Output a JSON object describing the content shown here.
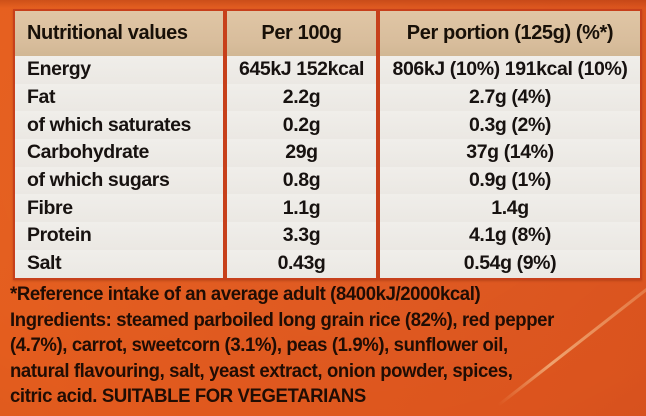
{
  "label": {
    "table": {
      "header": {
        "col1": "Nutritional values",
        "col2": "Per 100g",
        "col3": "Per portion (125g) (%*)"
      },
      "rows": [
        {
          "name": "Energy",
          "per100": "645kJ 152kcal",
          "portion": "806kJ (10%) 191kcal (10%)"
        },
        {
          "name": "Fat",
          "per100": "2.2g",
          "portion": "2.7g (4%)"
        },
        {
          "name": "of which saturates",
          "per100": "0.2g",
          "portion": "0.3g (2%)"
        },
        {
          "name": "Carbohydrate",
          "per100": "29g",
          "portion": "37g (14%)"
        },
        {
          "name": "of which sugars",
          "per100": "0.8g",
          "portion": "0.9g (1%)"
        },
        {
          "name": "Fibre",
          "per100": "1.1g",
          "portion": "1.4g"
        },
        {
          "name": "Protein",
          "per100": "3.3g",
          "portion": "4.1g (8%)"
        },
        {
          "name": "Salt",
          "per100": "0.43g",
          "portion": "0.54g (9%)"
        }
      ]
    },
    "footer": {
      "lines": [
        "*Reference intake of an average adult (8400kJ/2000kcal)",
        "Ingredients: steamed parboiled long grain rice (82%), red pepper",
        "(4.7%), carrot, sweetcorn (3.1%), peas (1.9%), sunflower oil,",
        "natural flavouring, salt, yeast extract, onion powder, spices,",
        "citric acid. SUITABLE FOR VEGETARIANS"
      ]
    },
    "colors": {
      "background_orange": "#e0581d",
      "header_tan": "#d9bf9e",
      "body_white": "#edeae5",
      "divider_red": "#c7401b",
      "text_black": "#171210"
    }
  }
}
